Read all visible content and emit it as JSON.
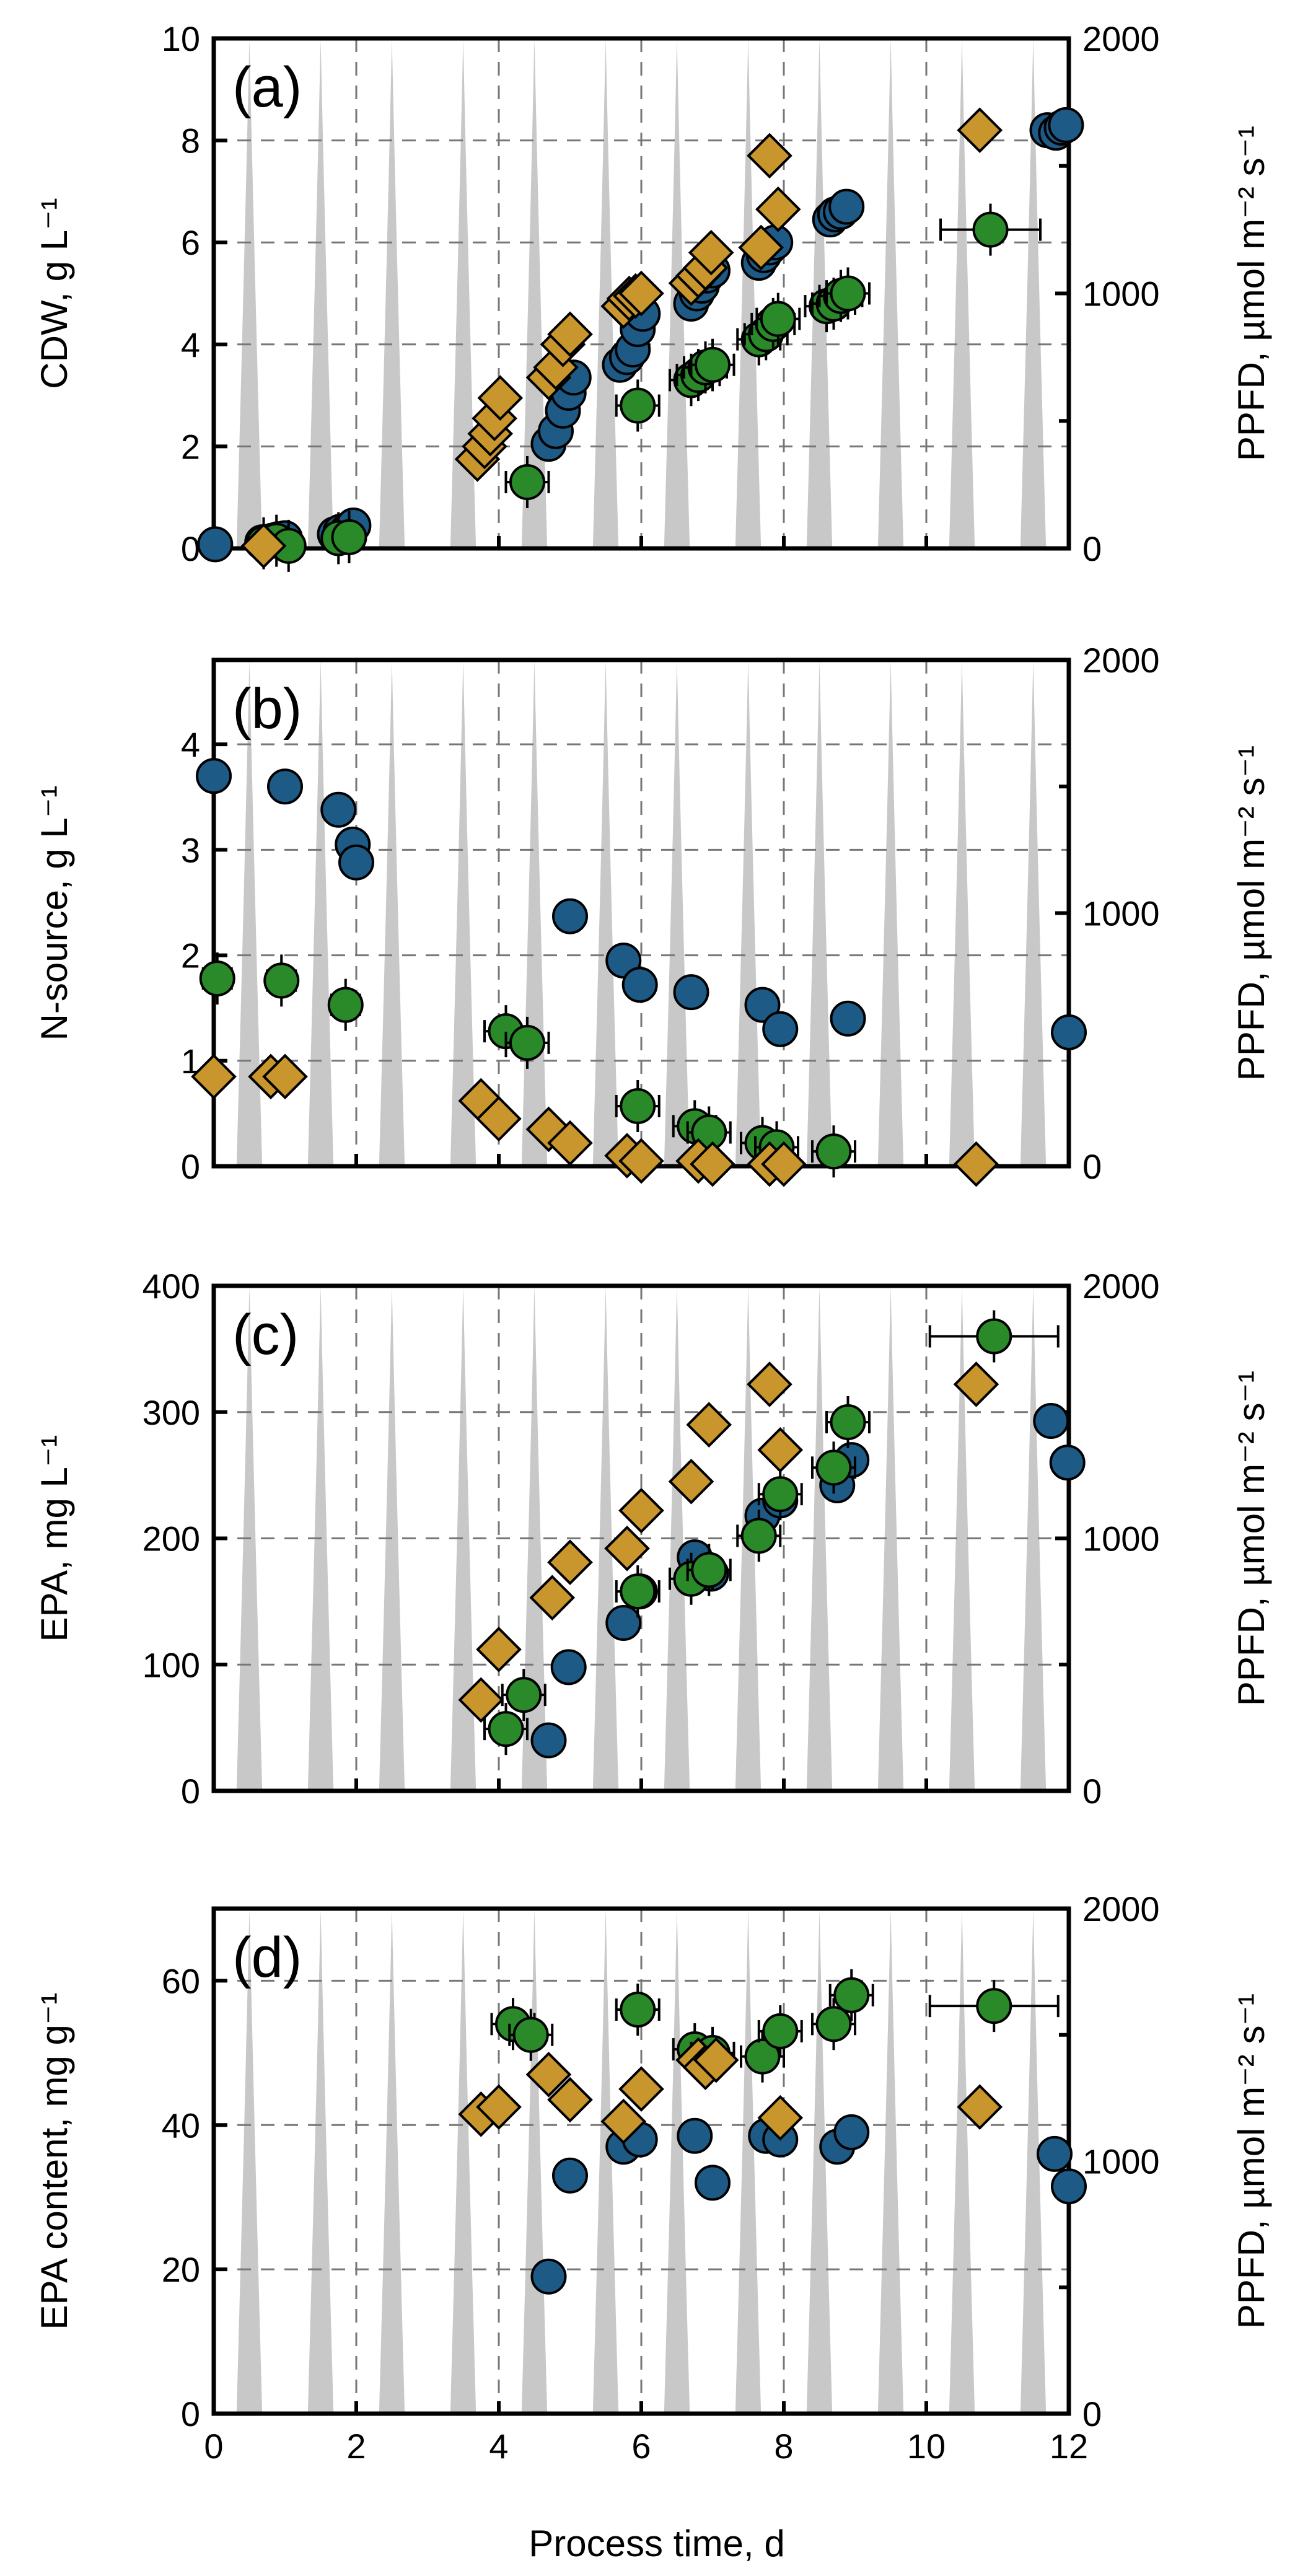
{
  "chart_data": {
    "xlabel": "Process time, d",
    "x_ticks": [
      "0",
      "2",
      "4",
      "6",
      "8",
      "10",
      "12"
    ],
    "xlim": [
      0,
      12
    ],
    "light": {
      "photoperiod_days": [
        0,
        1,
        2,
        3,
        4,
        5,
        6,
        7,
        8,
        9,
        10,
        11
      ],
      "peak_ppfd": 2000
    },
    "panels": [
      {
        "id": "a",
        "label": "(a)",
        "ylabel": "CDW, g L⁻¹",
        "ylim": [
          0,
          10
        ],
        "y_ticks": [
          "0",
          "2",
          "4",
          "6",
          "8",
          "10"
        ],
        "y2label": "PPFD, µmol m⁻² s⁻¹",
        "y2lim": [
          0,
          2000
        ],
        "y2_ticks": [
          "0",
          "1000",
          "2000"
        ],
        "series": [
          {
            "marker": "circle",
            "color": "#1d5a86",
            "points": [
              [
                0.02,
                0.08
              ],
              [
                0.68,
                0.12
              ],
              [
                0.82,
                0.15
              ],
              [
                0.9,
                0.18
              ],
              [
                1.0,
                0.2
              ],
              [
                1.7,
                0.28
              ],
              [
                1.78,
                0.33
              ],
              [
                1.88,
                0.36
              ],
              [
                1.96,
                0.45
              ],
              [
                4.7,
                2.05
              ],
              [
                4.8,
                2.3
              ],
              [
                4.9,
                2.7
              ],
              [
                4.98,
                3.05
              ],
              [
                5.05,
                3.35
              ],
              [
                5.7,
                3.6
              ],
              [
                5.8,
                3.75
              ],
              [
                5.88,
                3.9
              ],
              [
                5.95,
                4.3
              ],
              [
                6.02,
                4.6
              ],
              [
                6.7,
                4.8
              ],
              [
                6.78,
                5.0
              ],
              [
                6.85,
                5.15
              ],
              [
                6.92,
                5.35
              ],
              [
                7.0,
                5.45
              ],
              [
                7.65,
                5.6
              ],
              [
                7.72,
                5.75
              ],
              [
                7.8,
                5.9
              ],
              [
                7.88,
                6.0
              ],
              [
                8.65,
                6.45
              ],
              [
                8.72,
                6.55
              ],
              [
                8.8,
                6.6
              ],
              [
                8.88,
                6.7
              ],
              [
                11.7,
                8.2
              ],
              [
                11.82,
                8.15
              ],
              [
                11.9,
                8.25
              ],
              [
                11.96,
                8.3
              ]
            ]
          },
          {
            "marker": "circle",
            "color": "#2a8a2a",
            "points": [
              [
                0.7,
                0.1,
                0.15
              ],
              [
                0.88,
                0.15,
                0.15
              ],
              [
                1.05,
                0.05,
                0.15
              ],
              [
                1.75,
                0.2,
                0.15
              ],
              [
                1.9,
                0.22,
                0.15
              ],
              [
                4.4,
                1.3,
                0.3
              ],
              [
                5.95,
                2.8,
                0.3
              ],
              [
                6.7,
                3.3,
                0.3
              ],
              [
                6.8,
                3.4,
                0.3
              ],
              [
                6.9,
                3.55,
                0.3
              ],
              [
                7.0,
                3.6,
                0.3
              ],
              [
                7.65,
                4.1,
                0.3
              ],
              [
                7.75,
                4.2,
                0.3
              ],
              [
                7.85,
                4.4,
                0.3
              ],
              [
                7.92,
                4.5,
                0.3
              ],
              [
                8.6,
                4.75,
                0.3
              ],
              [
                8.7,
                4.8,
                0.3
              ],
              [
                8.8,
                4.95,
                0.3
              ],
              [
                8.9,
                5.0,
                0.3
              ],
              [
                10.9,
                6.25,
                0.7
              ]
            ]
          },
          {
            "marker": "diamond",
            "color": "#c8962c",
            "points": [
              [
                0.7,
                0.05
              ],
              [
                3.7,
                1.75
              ],
              [
                3.8,
                2.0
              ],
              [
                3.88,
                2.25
              ],
              [
                3.94,
                2.55
              ],
              [
                4.02,
                2.95
              ],
              [
                4.7,
                3.35
              ],
              [
                4.8,
                3.55
              ],
              [
                4.9,
                4.0
              ],
              [
                5.0,
                4.2
              ],
              [
                5.75,
                4.75
              ],
              [
                5.83,
                4.9
              ],
              [
                5.92,
                4.95
              ],
              [
                6.0,
                5.0
              ],
              [
                6.7,
                5.2
              ],
              [
                6.8,
                5.35
              ],
              [
                6.9,
                5.5
              ],
              [
                6.98,
                5.8
              ],
              [
                7.68,
                5.9
              ],
              [
                7.8,
                7.7
              ],
              [
                7.92,
                6.65
              ],
              [
                10.75,
                8.2
              ]
            ]
          }
        ]
      },
      {
        "id": "b",
        "label": "(b)",
        "ylabel": "N-source, g L⁻¹",
        "ylim": [
          0,
          4.8
        ],
        "y_ticks": [
          "0",
          "1",
          "2",
          "3",
          "4"
        ],
        "y2label": "PPFD, µmol m⁻² s⁻¹",
        "y2lim": [
          0,
          2000
        ],
        "y2_ticks": [
          "0",
          "1000",
          "2000"
        ],
        "series": [
          {
            "marker": "circle",
            "color": "#1d5a86",
            "points": [
              [
                0.0,
                3.7
              ],
              [
                1.0,
                3.6
              ],
              [
                1.75,
                3.38
              ],
              [
                1.95,
                3.05
              ],
              [
                2.0,
                2.88
              ],
              [
                5.0,
                2.37
              ],
              [
                5.75,
                1.95
              ],
              [
                5.98,
                1.72
              ],
              [
                6.7,
                1.65
              ],
              [
                7.7,
                1.53
              ],
              [
                7.95,
                1.3
              ],
              [
                8.9,
                1.4
              ],
              [
                12.0,
                1.27
              ]
            ]
          },
          {
            "marker": "circle",
            "color": "#2a8a2a",
            "points": [
              [
                0.05,
                1.78,
                0.2
              ],
              [
                0.95,
                1.76,
                0.2
              ],
              [
                1.85,
                1.53,
                0.2
              ],
              [
                4.1,
                1.28,
                0.3
              ],
              [
                4.4,
                1.17,
                0.3
              ],
              [
                5.95,
                0.57,
                0.3
              ],
              [
                6.75,
                0.38,
                0.3
              ],
              [
                6.95,
                0.32,
                0.3
              ],
              [
                7.7,
                0.22,
                0.3
              ],
              [
                7.9,
                0.18,
                0.3
              ],
              [
                8.7,
                0.14,
                0.3
              ]
            ]
          },
          {
            "marker": "diamond",
            "color": "#c8962c",
            "points": [
              [
                0.0,
                0.85
              ],
              [
                0.8,
                0.85
              ],
              [
                1.0,
                0.85
              ],
              [
                3.75,
                0.62
              ],
              [
                4.0,
                0.45
              ],
              [
                4.7,
                0.35
              ],
              [
                5.0,
                0.22
              ],
              [
                5.8,
                0.1
              ],
              [
                6.0,
                0.05
              ],
              [
                6.8,
                0.05
              ],
              [
                7.0,
                0.02
              ],
              [
                7.8,
                0.02
              ],
              [
                8.0,
                0.02
              ],
              [
                10.7,
                0.02
              ]
            ]
          }
        ]
      },
      {
        "id": "c",
        "label": "(c)",
        "ylabel": "EPA, mg L⁻¹",
        "ylim": [
          0,
          400
        ],
        "y_ticks": [
          "0",
          "100",
          "200",
          "300",
          "400"
        ],
        "y2label": "PPFD, µmol m⁻² s⁻¹",
        "y2lim": [
          0,
          2000
        ],
        "y2_ticks": [
          "0",
          "1000",
          "2000"
        ],
        "series": [
          {
            "marker": "circle",
            "color": "#1d5a86",
            "points": [
              [
                4.7,
                40
              ],
              [
                4.98,
                98
              ],
              [
                5.75,
                133
              ],
              [
                5.98,
                158
              ],
              [
                6.75,
                185
              ],
              [
                6.98,
                172
              ],
              [
                7.7,
                218
              ],
              [
                7.95,
                230
              ],
              [
                8.75,
                242
              ],
              [
                8.95,
                262
              ],
              [
                11.75,
                293
              ],
              [
                11.98,
                260
              ]
            ]
          },
          {
            "marker": "circle",
            "color": "#2a8a2a",
            "points": [
              [
                4.1,
                49,
                0.3
              ],
              [
                4.35,
                76,
                0.3
              ],
              [
                5.95,
                158,
                0.3
              ],
              [
                6.7,
                168,
                0.3
              ],
              [
                6.95,
                175,
                0.3
              ],
              [
                7.65,
                202,
                0.3
              ],
              [
                7.95,
                235,
                0.3
              ],
              [
                8.7,
                256,
                0.3
              ],
              [
                8.9,
                292,
                0.3
              ],
              [
                10.95,
                360,
                0.9
              ]
            ]
          },
          {
            "marker": "diamond",
            "color": "#c8962c",
            "points": [
              [
                3.75,
                72
              ],
              [
                4.0,
                112
              ],
              [
                4.75,
                153
              ],
              [
                5.0,
                181
              ],
              [
                5.8,
                192
              ],
              [
                6.0,
                222
              ],
              [
                6.7,
                245
              ],
              [
                6.95,
                290
              ],
              [
                7.8,
                322
              ],
              [
                7.95,
                270
              ],
              [
                10.7,
                322
              ]
            ]
          }
        ]
      },
      {
        "id": "d",
        "label": "(d)",
        "ylabel": "EPA content, mg g⁻¹",
        "ylim": [
          0,
          70
        ],
        "y_ticks": [
          "0",
          "20",
          "40",
          "60"
        ],
        "y2label": "PPFD, µmol m⁻² s⁻¹",
        "y2lim": [
          0,
          2000
        ],
        "y2_ticks": [
          "0",
          "1000",
          "2000"
        ],
        "series": [
          {
            "marker": "circle",
            "color": "#1d5a86",
            "points": [
              [
                4.7,
                19
              ],
              [
                5.0,
                33
              ],
              [
                5.75,
                37
              ],
              [
                5.98,
                38
              ],
              [
                6.75,
                38.5
              ],
              [
                7.0,
                32
              ],
              [
                7.75,
                38.5
              ],
              [
                7.95,
                38
              ],
              [
                8.75,
                37
              ],
              [
                8.95,
                39
              ],
              [
                11.8,
                36
              ],
              [
                12.0,
                31.5
              ]
            ]
          },
          {
            "marker": "circle",
            "color": "#2a8a2a",
            "points": [
              [
                4.2,
                54,
                0.3
              ],
              [
                4.45,
                52.5,
                0.3
              ],
              [
                5.95,
                56,
                0.3
              ],
              [
                6.75,
                50.5,
                0.3
              ],
              [
                7.0,
                50,
                0.3
              ],
              [
                7.7,
                49.5,
                0.3
              ],
              [
                7.95,
                53,
                0.3
              ],
              [
                8.7,
                54,
                0.3
              ],
              [
                8.95,
                58,
                0.3
              ],
              [
                10.95,
                56.5,
                0.9
              ]
            ]
          },
          {
            "marker": "diamond",
            "color": "#c8962c",
            "points": [
              [
                3.75,
                41.5
              ],
              [
                4.0,
                42.5
              ],
              [
                4.7,
                47
              ],
              [
                5.0,
                43.5
              ],
              [
                5.75,
                40.5
              ],
              [
                6.0,
                45
              ],
              [
                6.8,
                49
              ],
              [
                6.9,
                48
              ],
              [
                7.05,
                49
              ],
              [
                7.95,
                41
              ],
              [
                10.75,
                42.5
              ]
            ]
          }
        ]
      }
    ]
  }
}
